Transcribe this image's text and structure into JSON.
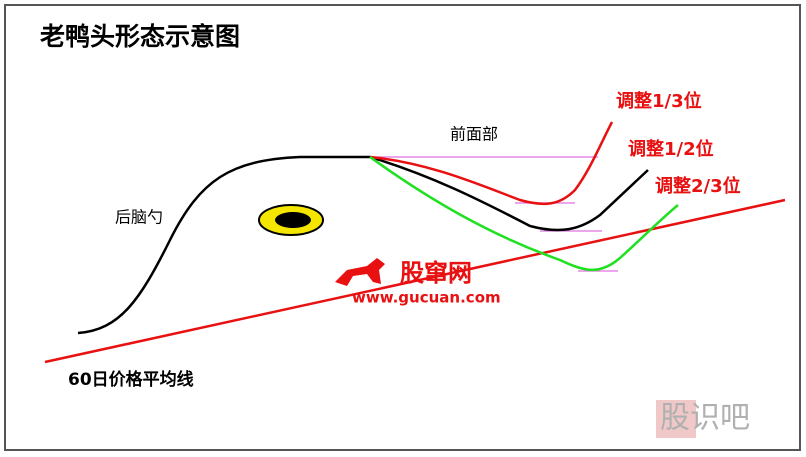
{
  "header": {
    "title": "老鸭头形态示意图"
  },
  "labels": {
    "front": "前面部",
    "back": "后脑勺",
    "ma60": "60日价格平均线"
  },
  "adjustments": [
    {
      "label": "调整1/3位"
    },
    {
      "label": "调整1/2位"
    },
    {
      "label": "调整2/3位"
    }
  ],
  "watermark": {
    "brand": "股窜网",
    "url": "www.gucuan.com",
    "corner": "股识吧"
  }
}
